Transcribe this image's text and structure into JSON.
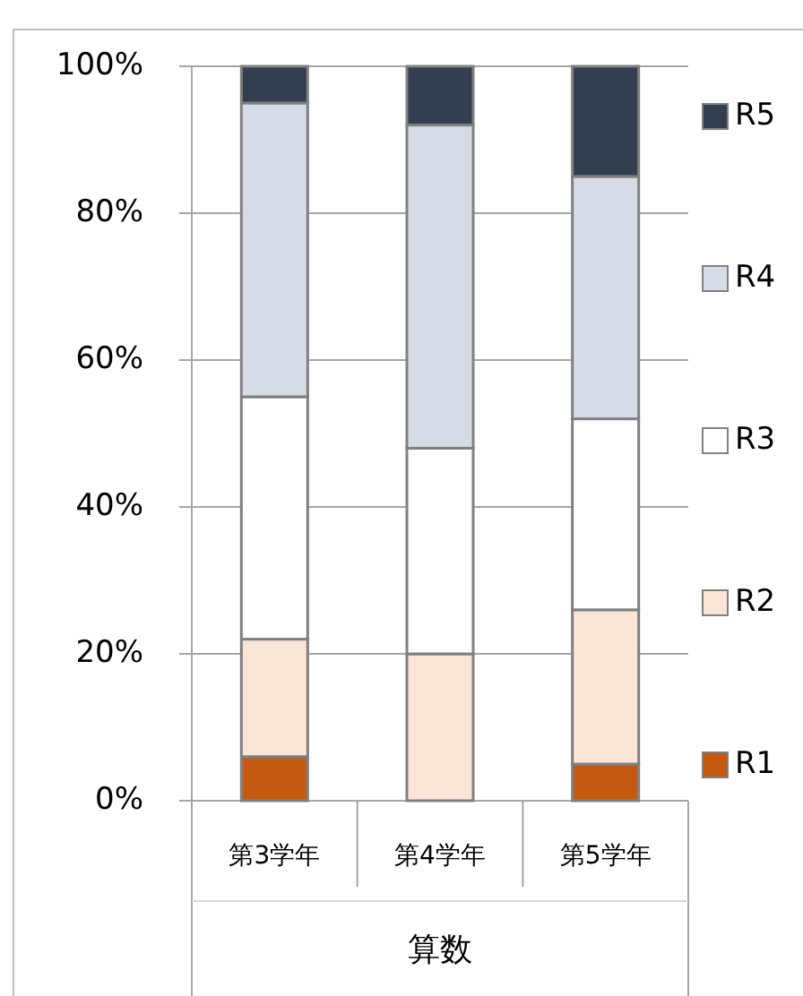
{
  "chart_data": {
    "type": "bar",
    "stacked": true,
    "xlabel": "算数",
    "categories": [
      "第3学年",
      "第4学年",
      "第5学年"
    ],
    "series": [
      {
        "name": "R1",
        "color": "#c55a11",
        "values": [
          6,
          0,
          5
        ]
      },
      {
        "name": "R2",
        "color": "#fbe5d6",
        "values": [
          16,
          20,
          21
        ]
      },
      {
        "name": "R3",
        "color": "#ffffff",
        "values": [
          33,
          28,
          26
        ]
      },
      {
        "name": "R4",
        "color": "#d6dce5",
        "values": [
          40,
          44,
          33
        ]
      },
      {
        "name": "R5",
        "color": "#333f50",
        "values": [
          5,
          8,
          15
        ]
      }
    ],
    "ylim": [
      0,
      100
    ],
    "yticks": [
      {
        "value": 0,
        "label": "0%"
      },
      {
        "value": 20,
        "label": "20%"
      },
      {
        "value": 40,
        "label": "40%"
      },
      {
        "value": 60,
        "label": "60%"
      },
      {
        "value": 80,
        "label": "80%"
      },
      {
        "value": 100,
        "label": "100%"
      }
    ],
    "grid": "y",
    "legend": "right"
  }
}
